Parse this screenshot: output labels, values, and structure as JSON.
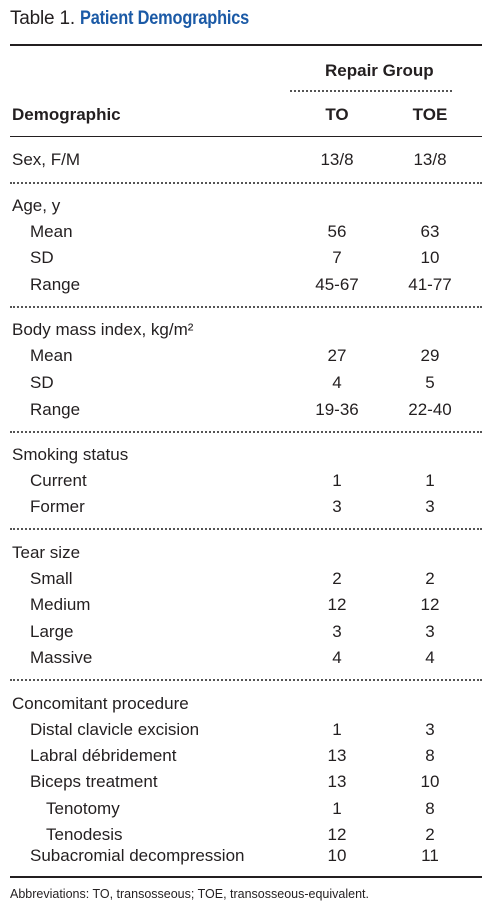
{
  "table_label": "Table 1.",
  "table_title": "Patient Demographics",
  "header": {
    "group": "Repair Group",
    "demographic": "Demographic",
    "col1": "TO",
    "col2": "TOE"
  },
  "rows": [
    {
      "label": "Sex, F/M",
      "v1": "13/8",
      "v2": "13/8"
    },
    {
      "label": "Age, y",
      "v1": "",
      "v2": ""
    },
    {
      "label": "Mean",
      "v1": "56",
      "v2": "63"
    },
    {
      "label": "SD",
      "v1": "7",
      "v2": "10"
    },
    {
      "label": "Range",
      "v1": "45-67",
      "v2": "41-77"
    },
    {
      "label": "Body mass index, kg/m²",
      "v1": "",
      "v2": ""
    },
    {
      "label": "Mean",
      "v1": "27",
      "v2": "29"
    },
    {
      "label": "SD",
      "v1": "4",
      "v2": "5"
    },
    {
      "label": "Range",
      "v1": "19-36",
      "v2": "22-40"
    },
    {
      "label": "Smoking status",
      "v1": "",
      "v2": ""
    },
    {
      "label": "Current",
      "v1": "1",
      "v2": "1"
    },
    {
      "label": "Former",
      "v1": "3",
      "v2": "3"
    },
    {
      "label": "Tear size",
      "v1": "",
      "v2": ""
    },
    {
      "label": "Small",
      "v1": "2",
      "v2": "2"
    },
    {
      "label": "Medium",
      "v1": "12",
      "v2": "12"
    },
    {
      "label": "Large",
      "v1": "3",
      "v2": "3"
    },
    {
      "label": "Massive",
      "v1": "4",
      "v2": "4"
    },
    {
      "label": "Concomitant procedure",
      "v1": "",
      "v2": ""
    },
    {
      "label": "Distal clavicle excision",
      "v1": "1",
      "v2": "3"
    },
    {
      "label": "Labral débridement",
      "v1": "13",
      "v2": "8"
    },
    {
      "label": "Biceps treatment",
      "v1": "13",
      "v2": "10"
    },
    {
      "label": "Tenotomy",
      "v1": "1",
      "v2": "8"
    },
    {
      "label": "Tenodesis",
      "v1": "12",
      "v2": "2"
    },
    {
      "label": "Subacromial decompression",
      "v1": "10",
      "v2": "11"
    }
  ],
  "footnote": "Abbreviations: TO, transosseous; TOE, transosseous-equivalent."
}
